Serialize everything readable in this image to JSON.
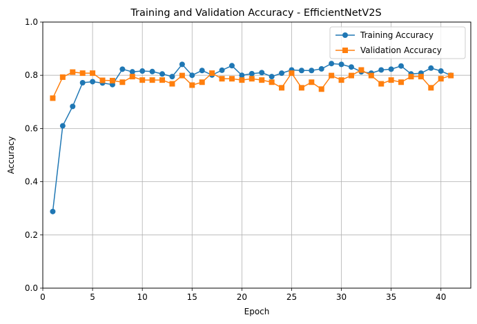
{
  "chart_data": {
    "type": "line",
    "title": "Training and Validation Accuracy - EfficientNetV2S",
    "xlabel": "Epoch",
    "ylabel": "Accuracy",
    "xlim": [
      0,
      43
    ],
    "ylim": [
      0,
      1.0
    ],
    "xticks": [
      0,
      5,
      10,
      15,
      20,
      25,
      30,
      35,
      40
    ],
    "xtick_labels": [
      "0",
      "5",
      "10",
      "15",
      "20",
      "25",
      "30",
      "35",
      "40"
    ],
    "yticks": [
      0,
      0.2,
      0.4,
      0.6,
      0.8,
      1.0
    ],
    "ytick_labels": [
      "0.0",
      "0.2",
      "0.4",
      "0.6",
      "0.8",
      "1.0"
    ],
    "grid": true,
    "legend_position": "top-right",
    "x": [
      1,
      2,
      3,
      4,
      5,
      6,
      7,
      8,
      9,
      10,
      11,
      12,
      13,
      14,
      15,
      16,
      17,
      18,
      19,
      20,
      21,
      22,
      23,
      24,
      25,
      26,
      27,
      28,
      29,
      30,
      31,
      32,
      33,
      34,
      35,
      36,
      37,
      38,
      39,
      40,
      41
    ],
    "series": [
      {
        "name": "Training Accuracy",
        "color": "#1f77b4",
        "marker": "circle",
        "values": [
          0.288,
          0.61,
          0.683,
          0.772,
          0.776,
          0.771,
          0.765,
          0.823,
          0.813,
          0.816,
          0.814,
          0.805,
          0.795,
          0.841,
          0.8,
          0.818,
          0.801,
          0.819,
          0.836,
          0.8,
          0.806,
          0.81,
          0.795,
          0.808,
          0.82,
          0.818,
          0.818,
          0.824,
          0.844,
          0.841,
          0.831,
          0.813,
          0.808,
          0.82,
          0.823,
          0.835,
          0.805,
          0.808,
          0.827,
          0.816,
          0.8
        ]
      },
      {
        "name": "Validation Accuracy",
        "color": "#ff7f0e",
        "marker": "square",
        "values": [
          0.714,
          0.793,
          0.812,
          0.808,
          0.808,
          0.781,
          0.78,
          0.774,
          0.795,
          0.782,
          0.782,
          0.782,
          0.768,
          0.799,
          0.763,
          0.774,
          0.808,
          0.787,
          0.787,
          0.782,
          0.787,
          0.782,
          0.774,
          0.753,
          0.808,
          0.753,
          0.774,
          0.748,
          0.799,
          0.782,
          0.799,
          0.82,
          0.799,
          0.768,
          0.782,
          0.774,
          0.795,
          0.795,
          0.753,
          0.787,
          0.799
        ]
      }
    ]
  }
}
